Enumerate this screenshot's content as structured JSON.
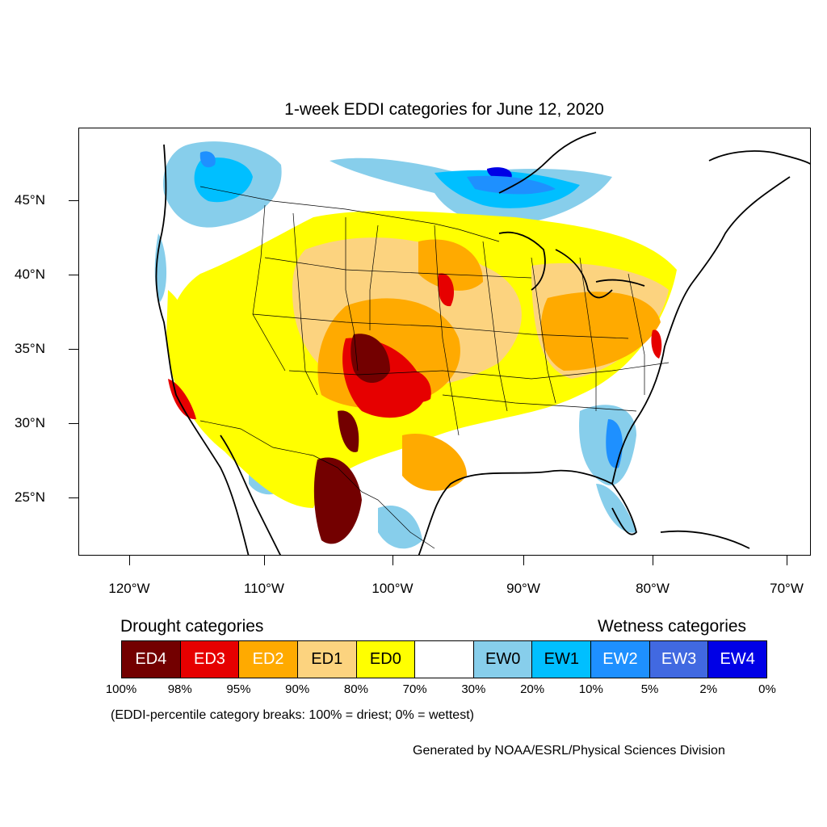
{
  "title": "1-week EDDI categories for June 12, 2020",
  "lat_labels": [
    "45°N",
    "40°N",
    "35°N",
    "30°N",
    "25°N"
  ],
  "lon_labels": [
    "120°W",
    "110°W",
    "100°W",
    "90°W",
    "80°W",
    "70°W"
  ],
  "legend": {
    "drought_heading": "Drought categories",
    "wetness_heading": "Wetness categories",
    "categories": [
      {
        "label": "ED4",
        "color": "#730000",
        "text_color": "#ffffff"
      },
      {
        "label": "ED3",
        "color": "#e60000",
        "text_color": "#ffffff"
      },
      {
        "label": "ED2",
        "color": "#ffaa00",
        "text_color": "#ffffff"
      },
      {
        "label": "ED1",
        "color": "#fcd37f",
        "text_color": "#000000"
      },
      {
        "label": "ED0",
        "color": "#ffff00",
        "text_color": "#000000"
      },
      {
        "label": "",
        "color": "#ffffff",
        "text_color": "#000000"
      },
      {
        "label": "EW0",
        "color": "#87ceeb",
        "text_color": "#000000"
      },
      {
        "label": "EW1",
        "color": "#00bfff",
        "text_color": "#000000"
      },
      {
        "label": "EW2",
        "color": "#1e90ff",
        "text_color": "#ffffff"
      },
      {
        "label": "EW3",
        "color": "#4169e1",
        "text_color": "#ffffff"
      },
      {
        "label": "EW4",
        "color": "#0000e6",
        "text_color": "#ffffff"
      }
    ],
    "percent_breaks": [
      "100%",
      "98%",
      "95%",
      "90%",
      "80%",
      "70%",
      "30%",
      "20%",
      "10%",
      "5%",
      "2%",
      "0%"
    ]
  },
  "note": "(EDDI-percentile category breaks: 100% = driest; 0% = wettest)",
  "credit": "Generated by NOAA/ESRL/Physical Sciences Division"
}
